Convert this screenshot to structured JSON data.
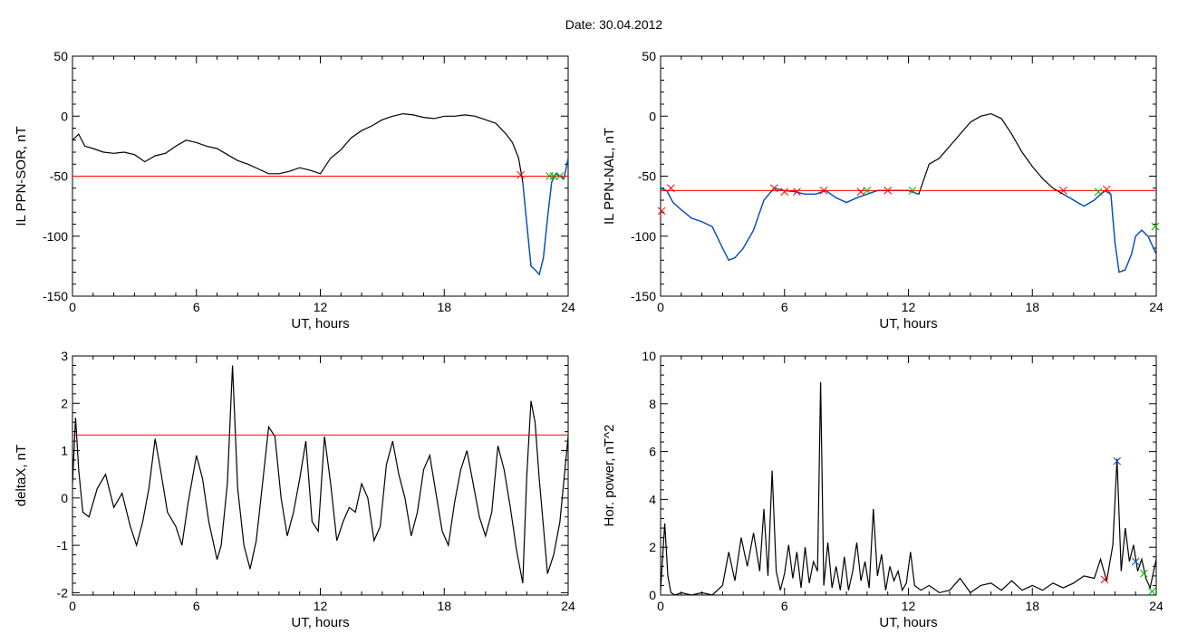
{
  "figure": {
    "date_label": "Date:  30.04.2012"
  },
  "colors": {
    "data": "#000000",
    "threshold": "#ff0000",
    "highlight": "#0050c8",
    "mark_red": "#ff0000",
    "mark_green": "#00b000",
    "mark_blue": "#0050c8"
  },
  "chart_data": [
    {
      "id": "p1",
      "type": "line",
      "ylabel": "IL PPN-SOR, nT",
      "xlabel": "UT, hours",
      "xlim": [
        0,
        24
      ],
      "ylim": [
        -150,
        50
      ],
      "xticks": [
        0,
        6,
        12,
        18,
        24
      ],
      "yticks": [
        -150,
        -100,
        -50,
        0,
        50
      ],
      "threshold": -50,
      "series": [
        {
          "x": [
            0,
            0.3,
            0.6,
            1,
            1.5,
            2,
            2.5,
            3,
            3.5,
            4,
            4.5,
            5,
            5.5,
            6,
            6.5,
            7,
            7.5,
            8,
            8.5,
            9,
            9.5,
            10,
            10.5,
            11,
            11.5,
            12,
            12.5,
            13,
            13.5,
            14,
            14.5,
            15,
            15.5,
            16,
            16.5,
            17,
            17.5,
            18,
            18.5,
            19,
            19.5,
            20,
            20.5,
            21,
            21.3,
            21.6,
            21.8,
            22,
            22.2,
            22.4,
            22.6,
            22.8,
            23,
            23.2,
            23.4,
            23.6,
            23.8,
            24
          ],
          "y": [
            -20,
            -15,
            -25,
            -27,
            -30,
            -31,
            -30,
            -32,
            -38,
            -33,
            -31,
            -25,
            -20,
            -22,
            -25,
            -27,
            -32,
            -37,
            -40,
            -44,
            -48,
            -48,
            -46,
            -43,
            -45,
            -48,
            -35,
            -28,
            -18,
            -12,
            -8,
            -3,
            0,
            2,
            1,
            -1,
            -2,
            0,
            0,
            1,
            0,
            -3,
            -6,
            -15,
            -22,
            -35,
            -55,
            -90,
            -125,
            -128,
            -132,
            -118,
            -85,
            -55,
            -48,
            -50,
            -52,
            -35
          ]
        }
      ],
      "highlight_from": 21.7,
      "marks": [
        {
          "x": 21.7,
          "y": -49,
          "color": "red"
        },
        {
          "x": 23.1,
          "y": -50,
          "color": "green"
        },
        {
          "x": 23.3,
          "y": -50,
          "color": "green"
        },
        {
          "x": 23.6,
          "y": -50,
          "color": "green"
        }
      ]
    },
    {
      "id": "p2",
      "type": "line",
      "ylabel": "IL PPN-NAL, nT",
      "xlabel": "UT, hours",
      "xlim": [
        0,
        24
      ],
      "ylim": [
        -150,
        50
      ],
      "xticks": [
        0,
        6,
        12,
        18,
        24
      ],
      "yticks": [
        -150,
        -100,
        -50,
        0,
        50
      ],
      "threshold": -62,
      "series": [
        {
          "x": [
            0,
            0.3,
            0.6,
            1,
            1.5,
            2,
            2.5,
            3,
            3.3,
            3.6,
            4,
            4.5,
            5,
            5.5,
            6,
            6.5,
            7,
            7.5,
            8,
            8.5,
            9,
            9.5,
            10,
            10.5,
            11,
            11.5,
            12,
            12.5,
            13,
            13.5,
            14,
            14.5,
            15,
            15.5,
            16,
            16.5,
            17,
            17.5,
            18,
            18.5,
            19,
            19.5,
            20,
            20.5,
            21,
            21.5,
            21.8,
            22,
            22.2,
            22.5,
            22.8,
            23,
            23.3,
            23.6,
            24
          ],
          "y": [
            -60,
            -62,
            -72,
            -78,
            -85,
            -88,
            -92,
            -110,
            -120,
            -118,
            -110,
            -95,
            -70,
            -60,
            -62,
            -63,
            -65,
            -65,
            -62,
            -68,
            -72,
            -68,
            -65,
            -62,
            -62,
            -62,
            -62,
            -65,
            -40,
            -35,
            -25,
            -15,
            -5,
            0,
            2,
            -2,
            -15,
            -30,
            -42,
            -52,
            -60,
            -65,
            -70,
            -75,
            -70,
            -62,
            -65,
            -105,
            -130,
            -128,
            -115,
            -100,
            -95,
            -100,
            -115
          ]
        }
      ],
      "highlight_from": 0.0,
      "highlight_gap": [
        12.6,
        19.1
      ],
      "marks": [
        {
          "x": 0.05,
          "y": -79,
          "color": "red"
        },
        {
          "x": 0.5,
          "y": -60,
          "color": "red"
        },
        {
          "x": 5.5,
          "y": -60,
          "color": "red"
        },
        {
          "x": 6.0,
          "y": -63,
          "color": "red"
        },
        {
          "x": 6.6,
          "y": -63,
          "color": "red"
        },
        {
          "x": 7.9,
          "y": -62,
          "color": "red"
        },
        {
          "x": 9.7,
          "y": -63,
          "color": "red"
        },
        {
          "x": 10.0,
          "y": -62,
          "color": "green"
        },
        {
          "x": 11.0,
          "y": -62,
          "color": "red"
        },
        {
          "x": 12.2,
          "y": -62,
          "color": "green"
        },
        {
          "x": 19.5,
          "y": -62,
          "color": "red"
        },
        {
          "x": 21.2,
          "y": -63,
          "color": "green"
        },
        {
          "x": 21.6,
          "y": -61,
          "color": "red"
        },
        {
          "x": 23.95,
          "y": -92,
          "color": "green"
        }
      ]
    },
    {
      "id": "p3",
      "type": "line",
      "ylabel": "deltaX, nT",
      "xlabel": "UT, hours",
      "xlim": [
        0,
        24
      ],
      "ylim": [
        -2.05,
        3
      ],
      "xticks": [
        0,
        6,
        12,
        18,
        24
      ],
      "yticks": [
        -2,
        -1,
        0,
        1,
        2,
        3
      ],
      "threshold": 1.33,
      "series": [
        {
          "x": [
            0,
            0.15,
            0.3,
            0.5,
            0.8,
            1.2,
            1.6,
            2,
            2.4,
            2.8,
            3.1,
            3.4,
            3.7,
            4,
            4.3,
            4.6,
            5,
            5.3,
            5.6,
            6,
            6.3,
            6.6,
            7,
            7.2,
            7.5,
            7.75,
            8,
            8.3,
            8.6,
            8.9,
            9.2,
            9.5,
            9.8,
            10.1,
            10.4,
            10.7,
            11,
            11.3,
            11.6,
            11.9,
            12.2,
            12.5,
            12.8,
            13.1,
            13.4,
            13.7,
            14,
            14.3,
            14.6,
            14.9,
            15.2,
            15.5,
            15.8,
            16.1,
            16.4,
            16.7,
            17,
            17.3,
            17.6,
            17.9,
            18.2,
            18.5,
            18.8,
            19.1,
            19.4,
            19.7,
            20,
            20.3,
            20.6,
            20.9,
            21.2,
            21.5,
            21.8,
            22,
            22.2,
            22.4,
            22.6,
            22.8,
            23,
            23.3,
            23.6,
            24
          ],
          "y": [
            0.3,
            1.7,
            0.6,
            -0.3,
            -0.4,
            0.2,
            0.5,
            -0.2,
            0.1,
            -0.6,
            -1.0,
            -0.5,
            0.2,
            1.25,
            0.5,
            -0.3,
            -0.6,
            -1.0,
            -0.1,
            0.9,
            0.4,
            -0.5,
            -1.3,
            -1.0,
            0.3,
            2.8,
            0.2,
            -1.0,
            -1.5,
            -0.9,
            0.3,
            1.5,
            1.3,
            0.0,
            -0.8,
            -0.3,
            0.4,
            1.2,
            -0.5,
            -0.7,
            1.3,
            0.3,
            -0.9,
            -0.5,
            -0.2,
            -0.3,
            0.3,
            0.0,
            -0.9,
            -0.6,
            0.7,
            1.2,
            0.5,
            0.0,
            -0.8,
            -0.3,
            0.6,
            0.9,
            0.1,
            -0.7,
            -1.0,
            -0.1,
            0.6,
            1.0,
            0.3,
            -0.4,
            -0.8,
            -0.3,
            1.1,
            0.6,
            -0.2,
            -1.1,
            -1.8,
            0.5,
            2.05,
            1.6,
            0.4,
            -0.6,
            -1.6,
            -1.2,
            -0.5,
            1.3
          ]
        }
      ]
    },
    {
      "id": "p4",
      "type": "line",
      "ylabel": "Hor. power, nT^2",
      "xlabel": "UT, hours",
      "xlim": [
        0,
        24
      ],
      "ylim": [
        0,
        10
      ],
      "xticks": [
        0,
        6,
        12,
        18,
        24
      ],
      "yticks": [
        0,
        2,
        4,
        6,
        8,
        10
      ],
      "series": [
        {
          "x": [
            0,
            0.2,
            0.35,
            0.5,
            0.7,
            1,
            1.5,
            2,
            2.5,
            3,
            3.3,
            3.6,
            3.9,
            4.2,
            4.5,
            4.8,
            5.0,
            5.2,
            5.4,
            5.6,
            5.8,
            6.0,
            6.2,
            6.4,
            6.6,
            6.8,
            7.0,
            7.2,
            7.4,
            7.6,
            7.75,
            7.9,
            8.1,
            8.3,
            8.5,
            8.7,
            8.9,
            9.1,
            9.3,
            9.5,
            9.7,
            9.9,
            10.1,
            10.3,
            10.5,
            10.7,
            10.9,
            11.1,
            11.3,
            11.5,
            11.7,
            11.9,
            12.1,
            12.3,
            12.6,
            13,
            13.5,
            14,
            14.5,
            15,
            15.5,
            16,
            16.5,
            17,
            17.5,
            18,
            18.5,
            19,
            19.5,
            20,
            20.5,
            21,
            21.3,
            21.6,
            21.9,
            22.1,
            22.3,
            22.5,
            22.7,
            22.9,
            23.1,
            23.3,
            23.5,
            23.7,
            24
          ],
          "y": [
            0.2,
            3.0,
            0.8,
            0.1,
            0.0,
            0.1,
            0.0,
            0.1,
            0.0,
            0.4,
            1.8,
            0.6,
            2.4,
            1.2,
            2.6,
            1.0,
            3.6,
            0.8,
            5.2,
            1.0,
            0.2,
            0.9,
            2.1,
            0.7,
            1.8,
            0.3,
            2.0,
            0.5,
            1.4,
            1.0,
            8.9,
            0.4,
            2.2,
            0.3,
            1.2,
            0.2,
            1.6,
            0.2,
            1.0,
            2.2,
            0.6,
            1.4,
            0.3,
            3.6,
            0.8,
            1.7,
            0.2,
            1.2,
            0.6,
            1.0,
            0.2,
            0.5,
            1.8,
            0.4,
            0.2,
            0.4,
            0.1,
            0.2,
            0.7,
            0.1,
            0.4,
            0.5,
            0.2,
            0.6,
            0.2,
            0.4,
            0.2,
            0.5,
            0.3,
            0.5,
            0.8,
            0.7,
            1.5,
            0.6,
            2.1,
            5.7,
            1.0,
            2.8,
            1.4,
            2.1,
            1.0,
            1.5,
            0.7,
            0.3,
            1.5
          ]
        }
      ],
      "marks": [
        {
          "x": 21.5,
          "y": 0.65,
          "color": "red"
        },
        {
          "x": 22.1,
          "y": 5.6,
          "color": "blue"
        },
        {
          "x": 23.0,
          "y": 1.4,
          "color": "blue"
        },
        {
          "x": 23.4,
          "y": 0.9,
          "color": "green"
        },
        {
          "x": 23.8,
          "y": 0.15,
          "color": "green"
        }
      ]
    }
  ]
}
